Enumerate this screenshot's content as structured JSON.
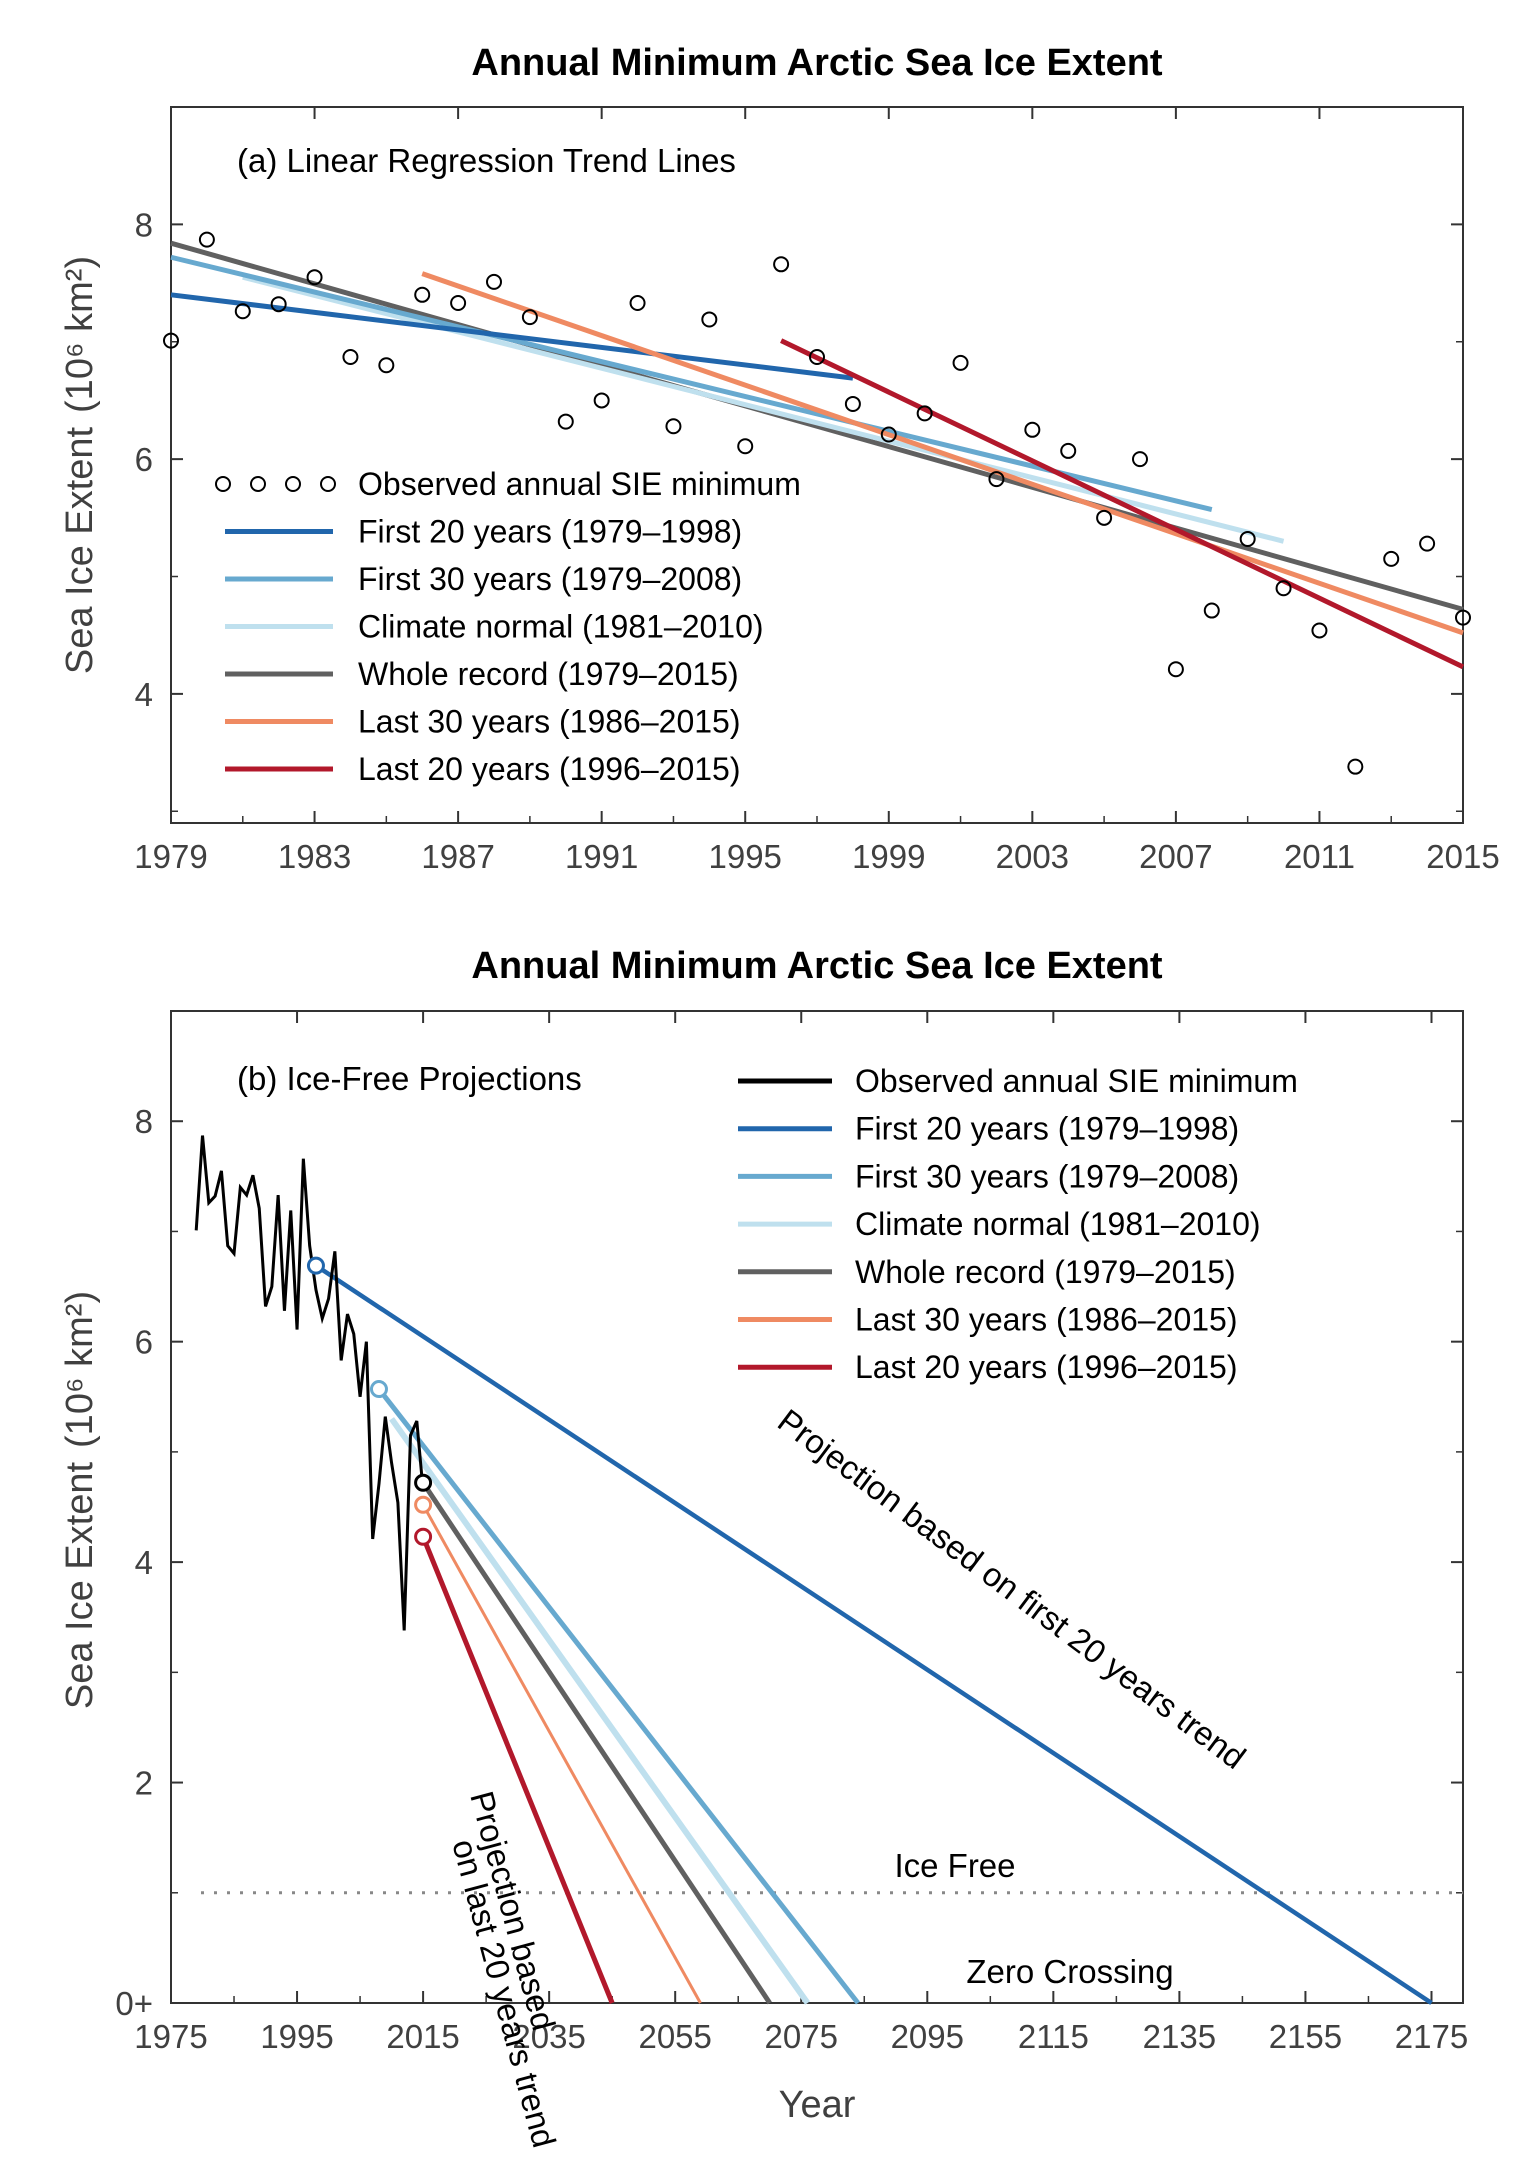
{
  "colors": {
    "first20": "#2166ac",
    "first30": "#67a9cf",
    "normal": "#bfe0ee",
    "whole": "#606060",
    "last30": "#ef8a62",
    "last20": "#b2182b",
    "observed": "#000000"
  },
  "chart_data": [
    {
      "type": "scatter",
      "title": "Annual Minimum Arctic Sea Ice Extent",
      "panel_label": "(a) Linear Regression Trend Lines",
      "ylabel": "Sea Ice Extent",
      "ylabel_unit": "(10⁶ km²)",
      "xlim": [
        1979,
        2015
      ],
      "ylim": [
        2.9,
        9.0
      ],
      "x_ticks": [
        1979,
        1983,
        1987,
        1991,
        1995,
        1999,
        2003,
        2007,
        2011,
        2015
      ],
      "y_ticks": [
        4,
        6,
        8
      ],
      "legend_position": "bottom-left",
      "observed": {
        "name": "Observed annual SIE minimum",
        "x": [
          1979,
          1980,
          1981,
          1982,
          1983,
          1984,
          1985,
          1986,
          1987,
          1988,
          1989,
          1990,
          1991,
          1992,
          1993,
          1994,
          1995,
          1996,
          1997,
          1998,
          1999,
          2000,
          2001,
          2002,
          2003,
          2004,
          2005,
          2006,
          2007,
          2008,
          2009,
          2010,
          2011,
          2012,
          2013,
          2014,
          2015
        ],
        "y": [
          7.01,
          7.87,
          7.26,
          7.32,
          7.55,
          6.87,
          6.8,
          7.4,
          7.33,
          7.51,
          7.21,
          6.32,
          6.5,
          7.33,
          6.28,
          7.19,
          6.11,
          7.66,
          6.87,
          6.47,
          6.21,
          6.39,
          6.82,
          5.83,
          6.25,
          6.07,
          5.5,
          6.0,
          4.21,
          4.71,
          5.32,
          4.9,
          4.54,
          3.38,
          5.15,
          5.28,
          4.65
        ]
      },
      "series": [
        {
          "name": "First 20 years (1979–1998)",
          "color_key": "first20",
          "x": [
            1979,
            1998
          ],
          "y": [
            7.4,
            6.69
          ]
        },
        {
          "name": "First 30 years (1979–2008)",
          "color_key": "first30",
          "x": [
            1979,
            2008
          ],
          "y": [
            7.72,
            5.57
          ]
        },
        {
          "name": "Climate normal (1981–2010)",
          "color_key": "normal",
          "x": [
            1981,
            2010
          ],
          "y": [
            7.55,
            5.3
          ]
        },
        {
          "name": "Whole record (1979–2015)",
          "color_key": "whole",
          "x": [
            1979,
            2015
          ],
          "y": [
            7.84,
            4.72
          ]
        },
        {
          "name": "Last 30 years (1986–2015)",
          "color_key": "last30",
          "x": [
            1986,
            2015
          ],
          "y": [
            7.58,
            4.52
          ]
        },
        {
          "name": "Last 20 years (1996–2015)",
          "color_key": "last20",
          "x": [
            1996,
            2015
          ],
          "y": [
            7.01,
            4.23
          ]
        }
      ]
    },
    {
      "type": "line",
      "title": "Annual Minimum Arctic Sea Ice Extent",
      "panel_label": "(b) Ice-Free Projections",
      "xlabel": "Year",
      "ylabel": "Sea Ice Extent",
      "ylabel_unit": "(10⁶ km²)",
      "xlim": [
        1975,
        2180
      ],
      "ylim": [
        0,
        9.0
      ],
      "x_ticks": [
        1975,
        1995,
        2015,
        2035,
        2055,
        2075,
        2095,
        2115,
        2135,
        2155,
        2175
      ],
      "y_ticks": [
        0,
        2,
        4,
        6,
        8
      ],
      "y_tick_labels": [
        "0+",
        "2",
        "4",
        "6",
        "8"
      ],
      "legend_position": "top-right",
      "ice_free_threshold": 1.0,
      "annotations": {
        "ice_free": "Ice Free",
        "zero_crossing": "Zero Crossing",
        "first20_projection": "Projection based on first 20 years trend",
        "last20_projection_line1": "Projection based",
        "last20_projection_line2": "on last 20 years trend"
      },
      "observed_name": "Observed annual SIE minimum",
      "series": [
        {
          "name": "First 20 years (1979–1998)",
          "color_key": "first20",
          "x": [
            1998,
            2175
          ],
          "y": [
            6.69,
            0.0
          ]
        },
        {
          "name": "First 30 years (1979–2008)",
          "color_key": "first30",
          "x": [
            2008,
            2084
          ],
          "y": [
            5.57,
            0.0
          ]
        },
        {
          "name": "Climate normal (1981–2010)",
          "color_key": "normal",
          "x": [
            2010,
            2076
          ],
          "y": [
            5.3,
            0.0
          ]
        },
        {
          "name": "Whole record (1979–2015)",
          "color_key": "whole",
          "x": [
            2015,
            2070
          ],
          "y": [
            4.72,
            0.0
          ]
        },
        {
          "name": "Last 30 years (1986–2015)",
          "color_key": "last30",
          "x": [
            2015,
            2059
          ],
          "y": [
            4.52,
            0.0
          ]
        },
        {
          "name": "Last 20 years (1996–2015)",
          "color_key": "last20",
          "x": [
            2015,
            2045
          ],
          "y": [
            4.23,
            0.0
          ]
        }
      ]
    }
  ]
}
